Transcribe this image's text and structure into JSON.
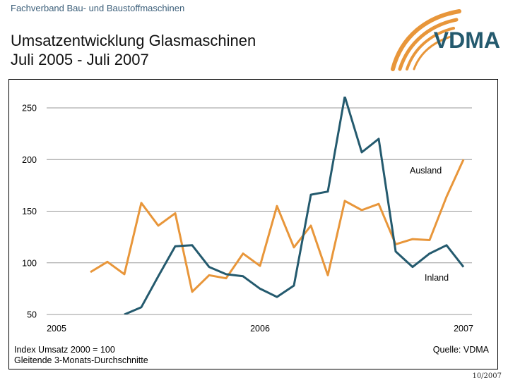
{
  "header": {
    "organization": "Fachverband Bau- und Baustoffmaschinen",
    "title_line1": "Umsatzentwicklung Glasmaschinen",
    "title_line2": "Juli 2005 - Juli 2007",
    "logo_text": "VDMA"
  },
  "footer": {
    "note_line1": "Index Umsatz 2000 = 100",
    "note_line2": "Gleitende 3-Monats-Durchschnitte",
    "source": "Quelle: VDMA",
    "date_stamp": "10/2007"
  },
  "colors": {
    "ausland": "#e8963a",
    "inland": "#245a6e",
    "grid": "#999999",
    "logo_blue": "#245a6e",
    "logo_orange": "#e8963a"
  },
  "chart_data": {
    "type": "line",
    "x_tick_labels": [
      "2005",
      "2006",
      "2007"
    ],
    "y_ticks": [
      50,
      100,
      150,
      200,
      250
    ],
    "ylim": [
      50,
      260
    ],
    "grid": true,
    "x": [
      0,
      1,
      2,
      3,
      4,
      5,
      6,
      7,
      8,
      9,
      10,
      11,
      12,
      13,
      14,
      15,
      16,
      17,
      18,
      19,
      20,
      21,
      22,
      23,
      24
    ],
    "series": [
      {
        "name": "Ausland",
        "color": "#e8963a",
        "values": [
          null,
          null,
          91,
          101,
          89,
          158,
          136,
          148,
          72,
          88,
          85,
          109,
          97,
          155,
          115,
          136,
          88,
          160,
          151,
          157,
          118,
          123,
          122,
          164,
          200
        ]
      },
      {
        "name": "Inland",
        "color": "#245a6e",
        "values": [
          null,
          null,
          null,
          null,
          50,
          57,
          87,
          116,
          117,
          96,
          89,
          87,
          75,
          67,
          78,
          166,
          169,
          261,
          207,
          220,
          111,
          96,
          109,
          117,
          96
        ]
      }
    ]
  }
}
